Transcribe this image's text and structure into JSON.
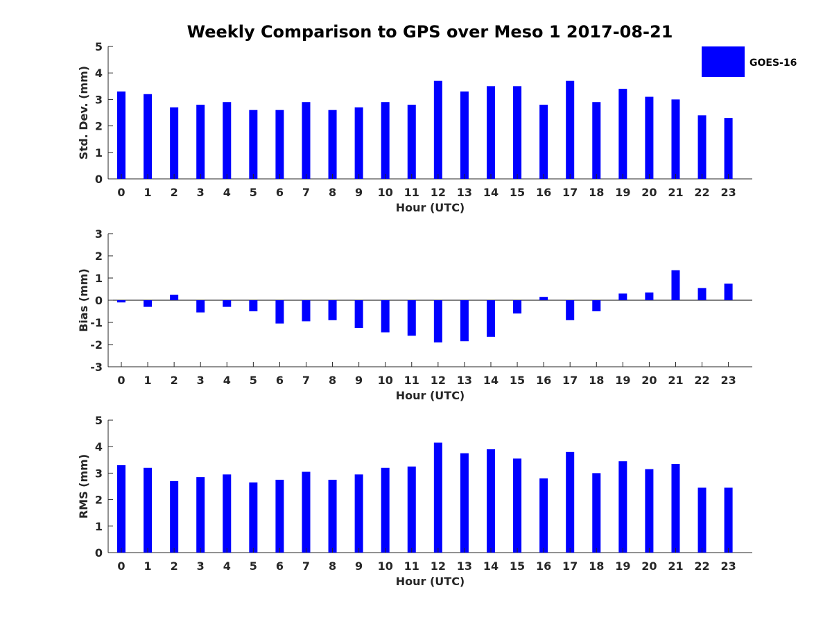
{
  "chart_data": [
    {
      "type": "bar",
      "title": "Weekly Comparison to GPS over Meso 1 2017-08-21",
      "xlabel": "Hour (UTC)",
      "ylabel": "Std. Dev. (mm)",
      "ylim": [
        0,
        5
      ],
      "yticks": [
        "0",
        "1",
        "2",
        "3",
        "4",
        "5"
      ],
      "categories": [
        "0",
        "1",
        "2",
        "3",
        "4",
        "5",
        "6",
        "7",
        "8",
        "9",
        "10",
        "11",
        "12",
        "13",
        "14",
        "15",
        "16",
        "17",
        "18",
        "19",
        "20",
        "21",
        "22",
        "23"
      ],
      "series": [
        {
          "name": "GOES-16",
          "color": "#0000ff",
          "values": [
            3.3,
            3.2,
            2.7,
            2.8,
            2.9,
            2.6,
            2.6,
            2.9,
            2.6,
            2.7,
            2.9,
            2.8,
            3.7,
            3.3,
            3.5,
            3.5,
            2.8,
            3.7,
            2.9,
            3.4,
            3.1,
            3.0,
            2.4,
            2.3
          ]
        }
      ]
    },
    {
      "type": "bar",
      "xlabel": "Hour (UTC)",
      "ylabel": "Bias (mm)",
      "ylim": [
        -3,
        3
      ],
      "yticks": [
        "-3",
        "-2",
        "-1",
        "0",
        "1",
        "2",
        "3"
      ],
      "categories": [
        "0",
        "1",
        "2",
        "3",
        "4",
        "5",
        "6",
        "7",
        "8",
        "9",
        "10",
        "11",
        "12",
        "13",
        "14",
        "15",
        "16",
        "17",
        "18",
        "19",
        "20",
        "21",
        "22",
        "23"
      ],
      "series": [
        {
          "name": "GOES-16",
          "color": "#0000ff",
          "values": [
            -0.1,
            -0.3,
            0.25,
            -0.55,
            -0.3,
            -0.5,
            -1.05,
            -0.95,
            -0.9,
            -1.25,
            -1.45,
            -1.6,
            -1.9,
            -1.85,
            -1.65,
            -0.6,
            0.15,
            -0.9,
            -0.5,
            0.3,
            0.35,
            1.35,
            0.55,
            0.75
          ]
        }
      ]
    },
    {
      "type": "bar",
      "xlabel": "Hour (UTC)",
      "ylabel": "RMS (mm)",
      "ylim": [
        0,
        5
      ],
      "yticks": [
        "0",
        "1",
        "2",
        "3",
        "4",
        "5"
      ],
      "categories": [
        "0",
        "1",
        "2",
        "3",
        "4",
        "5",
        "6",
        "7",
        "8",
        "9",
        "10",
        "11",
        "12",
        "13",
        "14",
        "15",
        "16",
        "17",
        "18",
        "19",
        "20",
        "21",
        "22",
        "23"
      ],
      "series": [
        {
          "name": "GOES-16",
          "color": "#0000ff",
          "values": [
            3.3,
            3.2,
            2.7,
            2.85,
            2.95,
            2.65,
            2.75,
            3.05,
            2.75,
            2.95,
            3.2,
            3.25,
            4.15,
            3.75,
            3.9,
            3.55,
            2.8,
            3.8,
            3.0,
            3.45,
            3.15,
            3.35,
            2.45,
            2.45
          ]
        }
      ]
    }
  ],
  "legend": {
    "label": "GOES-16",
    "color": "#0000ff"
  }
}
